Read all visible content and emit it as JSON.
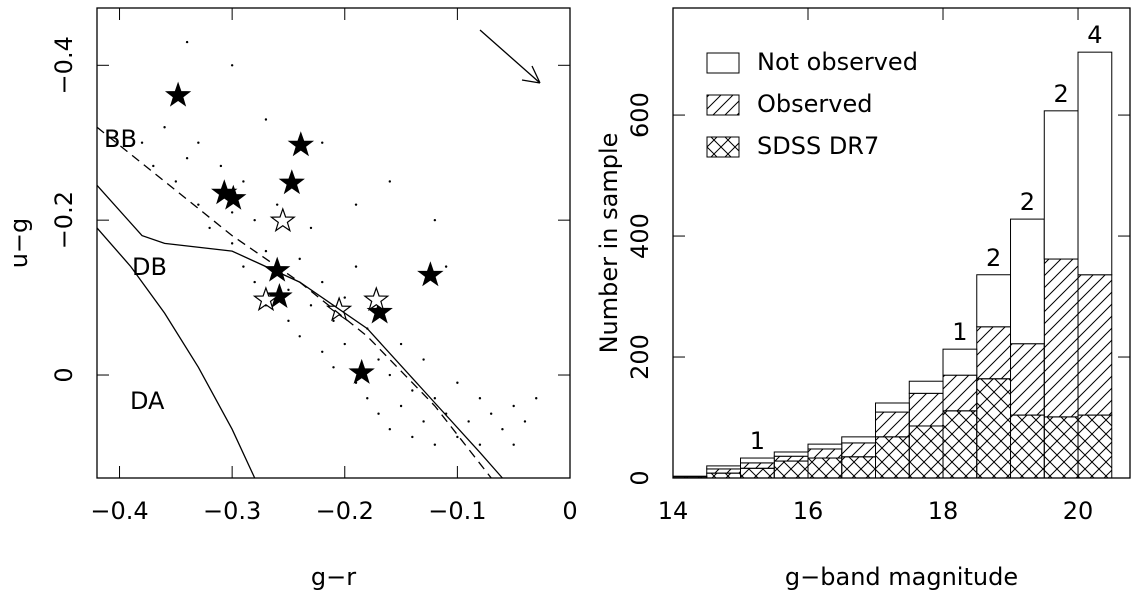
{
  "chart_data": [
    {
      "type": "scatter",
      "x_label": "g−r",
      "y_label": "u−g",
      "xlim": [
        -0.42,
        0
      ],
      "ylim": [
        0.133,
        -0.474
      ],
      "xticks": [
        {
          "value": -0.4,
          "label": "−0.4"
        },
        {
          "value": -0.3,
          "label": "−0.3"
        },
        {
          "value": -0.2,
          "label": "−0.2"
        },
        {
          "value": -0.1,
          "label": "−0.1"
        },
        0
      ],
      "yticks": [
        {
          "value": -0.4,
          "label": "−0.4"
        },
        {
          "value": -0.2,
          "label": "−0.2"
        },
        0
      ],
      "labels": [
        "BB",
        "DB",
        "DA"
      ],
      "series": [
        {
          "marker": "dot",
          "color": "#000000",
          "x": [
            -0.38,
            -0.37,
            -0.36,
            -0.35,
            -0.34,
            -0.33,
            -0.33,
            -0.32,
            -0.31,
            -0.3,
            -0.3,
            -0.29,
            -0.29,
            -0.28,
            -0.28,
            -0.27,
            -0.27,
            -0.26,
            -0.26,
            -0.25,
            -0.25,
            -0.24,
            -0.24,
            -0.23,
            -0.23,
            -0.22,
            -0.22,
            -0.21,
            -0.21,
            -0.2,
            -0.2,
            -0.19,
            -0.19,
            -0.18,
            -0.18,
            -0.17,
            -0.17,
            -0.16,
            -0.16,
            -0.15,
            -0.15,
            -0.14,
            -0.14,
            -0.13,
            -0.13,
            -0.12,
            -0.12,
            -0.11,
            -0.1,
            -0.1,
            -0.09,
            -0.08,
            -0.08,
            -0.07,
            -0.06,
            -0.05,
            -0.05,
            -0.04,
            -0.03,
            -0.3,
            -0.27,
            -0.22,
            -0.16,
            -0.19,
            -0.12,
            -0.34,
            -0.11
          ],
          "y": [
            -0.3,
            -0.27,
            -0.32,
            -0.25,
            -0.28,
            -0.22,
            -0.3,
            -0.19,
            -0.27,
            -0.17,
            -0.21,
            -0.14,
            -0.25,
            -0.2,
            -0.12,
            -0.16,
            -0.09,
            -0.13,
            -0.22,
            -0.07,
            -0.11,
            -0.15,
            -0.05,
            -0.09,
            -0.19,
            -0.03,
            -0.12,
            -0.07,
            -0.01,
            -0.1,
            -0.04,
            0.01,
            -0.14,
            -0.06,
            0.03,
            -0.02,
            0.05,
            0.0,
            0.07,
            -0.04,
            0.04,
            0.08,
            0.02,
            0.06,
            -0.02,
            0.09,
            0.03,
            0.05,
            0.08,
            0.01,
            0.06,
            0.03,
            0.09,
            0.05,
            0.07,
            0.04,
            0.09,
            0.06,
            0.03,
            -0.4,
            -0.33,
            -0.3,
            -0.25,
            -0.22,
            -0.2,
            -0.43,
            -0.14
          ]
        },
        {
          "marker": "filled-star",
          "color": "#000000",
          "x": [
            -0.348,
            -0.239,
            -0.307,
            -0.299,
            -0.247,
            -0.26,
            -0.258,
            -0.124,
            -0.169,
            -0.185
          ],
          "y": [
            -0.361,
            -0.297,
            -0.235,
            -0.228,
            -0.248,
            -0.135,
            -0.101,
            -0.129,
            -0.081,
            -0.003
          ]
        },
        {
          "marker": "open-star",
          "color": "#000000",
          "x": [
            -0.255,
            -0.27,
            -0.205,
            -0.172
          ],
          "y": [
            -0.199,
            -0.097,
            -0.084,
            -0.097
          ]
        },
        {
          "line": "solid",
          "color": "#000000",
          "x": [
            -0.42,
            -0.39,
            -0.36,
            -0.33,
            -0.3,
            -0.28
          ],
          "y": [
            -0.19,
            -0.14,
            -0.08,
            -0.01,
            0.07,
            0.133
          ]
        },
        {
          "line": "solid",
          "color": "#000000",
          "x": [
            -0.42,
            -0.38,
            -0.36,
            -0.3,
            -0.24,
            -0.18,
            -0.13,
            -0.08,
            -0.06
          ],
          "y": [
            -0.245,
            -0.18,
            -0.17,
            -0.16,
            -0.12,
            -0.06,
            0.02,
            0.1,
            0.133
          ]
        },
        {
          "line": "dashed",
          "color": "#000000",
          "x": [
            -0.42,
            -0.36,
            -0.3,
            -0.24,
            -0.18,
            -0.12,
            -0.07
          ],
          "y": [
            -0.32,
            -0.25,
            -0.18,
            -0.12,
            -0.05,
            0.04,
            0.133
          ]
        }
      ]
    },
    {
      "type": "histogram",
      "x_label": "g−band magnitude",
      "y_label": "Number in sample",
      "xlim": [
        14,
        20.77
      ],
      "ylim": [
        0,
        777
      ],
      "xticks": [
        14,
        16,
        18,
        20
      ],
      "yticks": [
        0,
        200,
        400,
        600
      ],
      "legend": "upper left",
      "bins": [
        14,
        14.5,
        15,
        15.5,
        16,
        16.5,
        17,
        17.5,
        18,
        18.5,
        19,
        19.5,
        20,
        20.5
      ],
      "annotations": [
        null,
        null,
        "1",
        null,
        null,
        null,
        null,
        null,
        "1",
        "2",
        "2",
        "2",
        "4"
      ],
      "series": [
        {
          "name": "SDSS DR7",
          "pattern": "cross",
          "values": [
            2,
            8,
            16,
            28,
            33,
            35,
            68,
            86,
            111,
            164,
            104,
            101,
            104
          ]
        },
        {
          "name": "Observed",
          "pattern": "diagonal",
          "values": [
            0,
            7,
            9,
            8,
            15,
            23,
            41,
            54,
            59,
            86,
            118,
            261,
            232
          ]
        },
        {
          "name": "Not observed",
          "pattern": "none",
          "values": [
            1,
            5,
            8,
            7,
            8,
            10,
            15,
            20,
            43,
            86,
            206,
            245,
            368
          ]
        }
      ]
    }
  ]
}
